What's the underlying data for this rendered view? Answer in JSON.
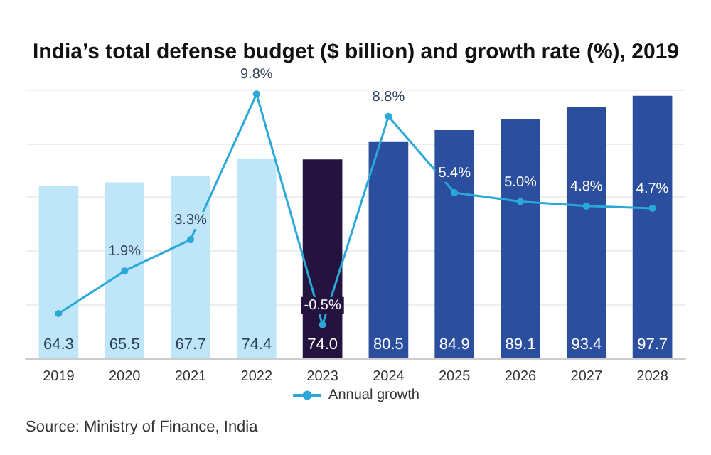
{
  "chart_data": {
    "type": "bar",
    "title": "India’s total defense budget ($ billion) and growth rate (%), 2019",
    "categories": [
      "2019",
      "2020",
      "2021",
      "2022",
      "2023",
      "2024",
      "2025",
      "2026",
      "2027",
      "2028"
    ],
    "series": [
      {
        "colors": [
          "#bfe6f8",
          "#bfe6f8",
          "#bfe6f8",
          "#bfe6f8",
          "#24133f",
          "#2b4f9e",
          "#2b4f9e",
          "#2b4f9e",
          "#2b4f9e",
          "#2b4f9e"
        ],
        "values": [
          64.3,
          65.5,
          67.7,
          74.4,
          74.0,
          80.5,
          84.9,
          89.1,
          93.4,
          97.7
        ],
        "value_labels": [
          "64.3",
          "65.5",
          "67.7",
          "74.4",
          "74.0",
          "80.5",
          "84.9",
          "89.1",
          "93.4",
          "97.7"
        ]
      },
      {
        "type": "line",
        "name": "Annual growth",
        "axis": "y2",
        "color": "#2aa8d8",
        "values": [
          0.0,
          1.9,
          3.3,
          9.8,
          -0.5,
          8.8,
          5.4,
          5.0,
          4.8,
          4.7
        ],
        "value_labels": [
          null,
          "1.9%",
          "3.3%",
          "9.8%",
          "-0.5%",
          "8.8%",
          "5.4%",
          "5.0%",
          "4.8%",
          "4.7%"
        ]
      }
    ],
    "data_labels": true,
    "grid": "y",
    "legend": "bottom",
    "marker": "circle",
    "annotations": [
      "Source: Ministry of Finance, India"
    ]
  }
}
